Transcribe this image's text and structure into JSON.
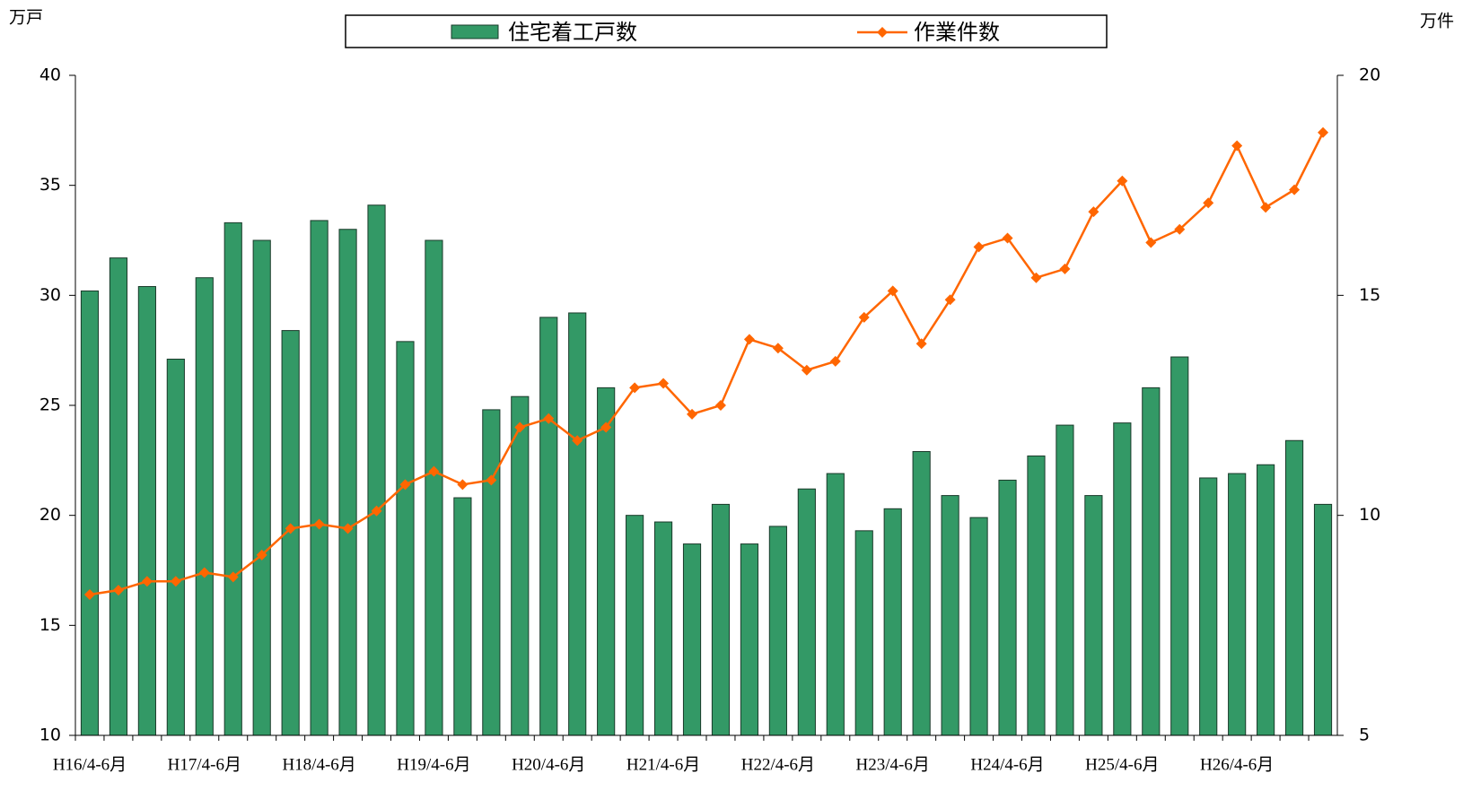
{
  "chart_data": {
    "type": "bar_line",
    "y_label": "万戸",
    "y2_label": "万件",
    "categories": [
      "H16/4-6月",
      null,
      null,
      null,
      "H17/4-6月",
      null,
      null,
      null,
      "H18/4-6月",
      null,
      null,
      null,
      "H19/4-6月",
      null,
      null,
      null,
      "H20/4-6月",
      null,
      null,
      null,
      "H21/4-6月",
      null,
      null,
      null,
      "H22/4-6月",
      null,
      null,
      null,
      "H23/4-6月",
      null,
      null,
      null,
      "H24/4-6月",
      null,
      null,
      null,
      "H25/4-6月",
      null,
      null,
      null,
      "H26/4-6月",
      null,
      null,
      null
    ],
    "series": [
      {
        "name": "住宅着工戸数",
        "type": "bar",
        "color": "#339966",
        "values": [
          30.2,
          31.7,
          30.4,
          27.1,
          30.8,
          33.3,
          32.5,
          28.4,
          33.4,
          33.0,
          34.1,
          27.9,
          32.5,
          20.8,
          24.8,
          25.4,
          29.0,
          29.2,
          25.8,
          20.0,
          19.7,
          18.7,
          20.5,
          18.7,
          19.5,
          21.2,
          21.9,
          19.3,
          20.3,
          22.9,
          20.9,
          19.9,
          21.6,
          22.7,
          24.1,
          20.9,
          24.2,
          25.8,
          27.2,
          21.7,
          21.9,
          22.3,
          23.4,
          20.5
        ]
      },
      {
        "name": "作業件数",
        "type": "line",
        "axis": "y2",
        "color": "#ff6600",
        "values": [
          8.2,
          8.3,
          8.5,
          8.5,
          8.7,
          8.6,
          9.1,
          9.7,
          9.8,
          9.7,
          10.1,
          10.7,
          11.0,
          10.7,
          10.8,
          12.0,
          12.2,
          11.7,
          12.0,
          12.9,
          13.0,
          12.3,
          12.5,
          14.0,
          13.8,
          13.3,
          13.5,
          14.5,
          15.1,
          13.9,
          14.9,
          16.1,
          16.3,
          15.4,
          15.6,
          16.9,
          17.6,
          16.2,
          16.5,
          17.1,
          18.4,
          17.0,
          17.4,
          18.7
        ]
      }
    ],
    "ylim": [
      10,
      40
    ],
    "yticks": [
      10,
      15,
      20,
      25,
      30,
      35,
      40
    ],
    "y2lim": [
      5,
      20
    ],
    "y2ticks": [
      5,
      10,
      15,
      20
    ],
    "grid": false,
    "legend": "top"
  }
}
